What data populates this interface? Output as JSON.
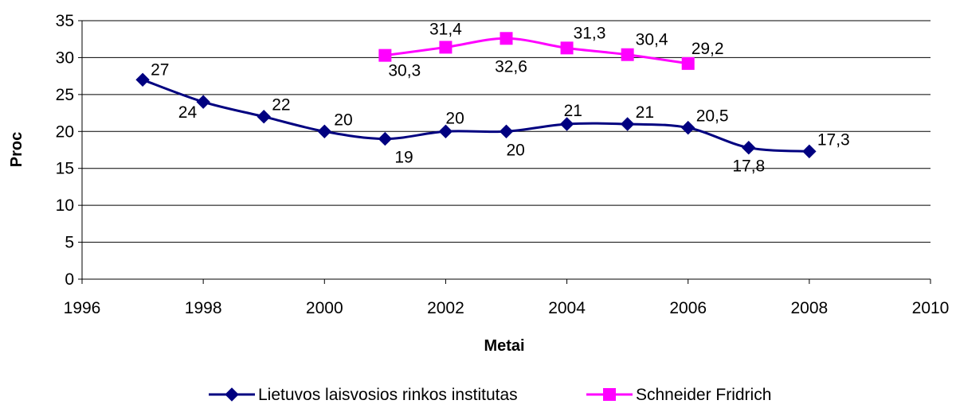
{
  "chart_data": {
    "type": "scatter",
    "xlabel": "Metai",
    "ylabel": "Proc",
    "xlim": [
      1996,
      2010
    ],
    "ylim": [
      0,
      35
    ],
    "x_ticks": [
      1996,
      1998,
      2000,
      2002,
      2004,
      2006,
      2008,
      2010
    ],
    "y_ticks": [
      0,
      5,
      10,
      15,
      20,
      25,
      30,
      35
    ],
    "x_tick_labels": [
      "1996",
      "1998",
      "2000",
      "2002",
      "2004",
      "2006",
      "2008",
      "2010"
    ],
    "y_tick_labels": [
      "0",
      "5",
      "10",
      "15",
      "20",
      "25",
      "30",
      "35"
    ],
    "grid": "horizontal",
    "legend_position": "bottom",
    "series": [
      {
        "name": "Lietuvos laisvosios rinkos institutas",
        "color": "#000080",
        "marker": "diamond",
        "smooth": true,
        "x": [
          1997,
          1998,
          1999,
          2000,
          2001,
          2002,
          2003,
          2004,
          2005,
          2006,
          2007,
          2008
        ],
        "y": [
          27,
          24,
          22,
          20,
          19,
          20,
          20,
          21,
          21,
          20.5,
          17.8,
          17.3
        ],
        "labels": [
          "27",
          "24",
          "22",
          "20",
          "19",
          "20",
          "20",
          "21",
          "21",
          "20,5",
          "17,8",
          "17,3"
        ]
      },
      {
        "name": "Schneider Fridrich",
        "color": "#ff00ff",
        "marker": "square",
        "smooth": true,
        "x": [
          2001,
          2002,
          2003,
          2004,
          2005,
          2006
        ],
        "y": [
          30.3,
          31.4,
          32.6,
          31.3,
          30.4,
          29.2
        ],
        "labels": [
          "30,3",
          "31,4",
          "32,6",
          "31,3",
          "30,4",
          "29,2"
        ]
      }
    ]
  }
}
